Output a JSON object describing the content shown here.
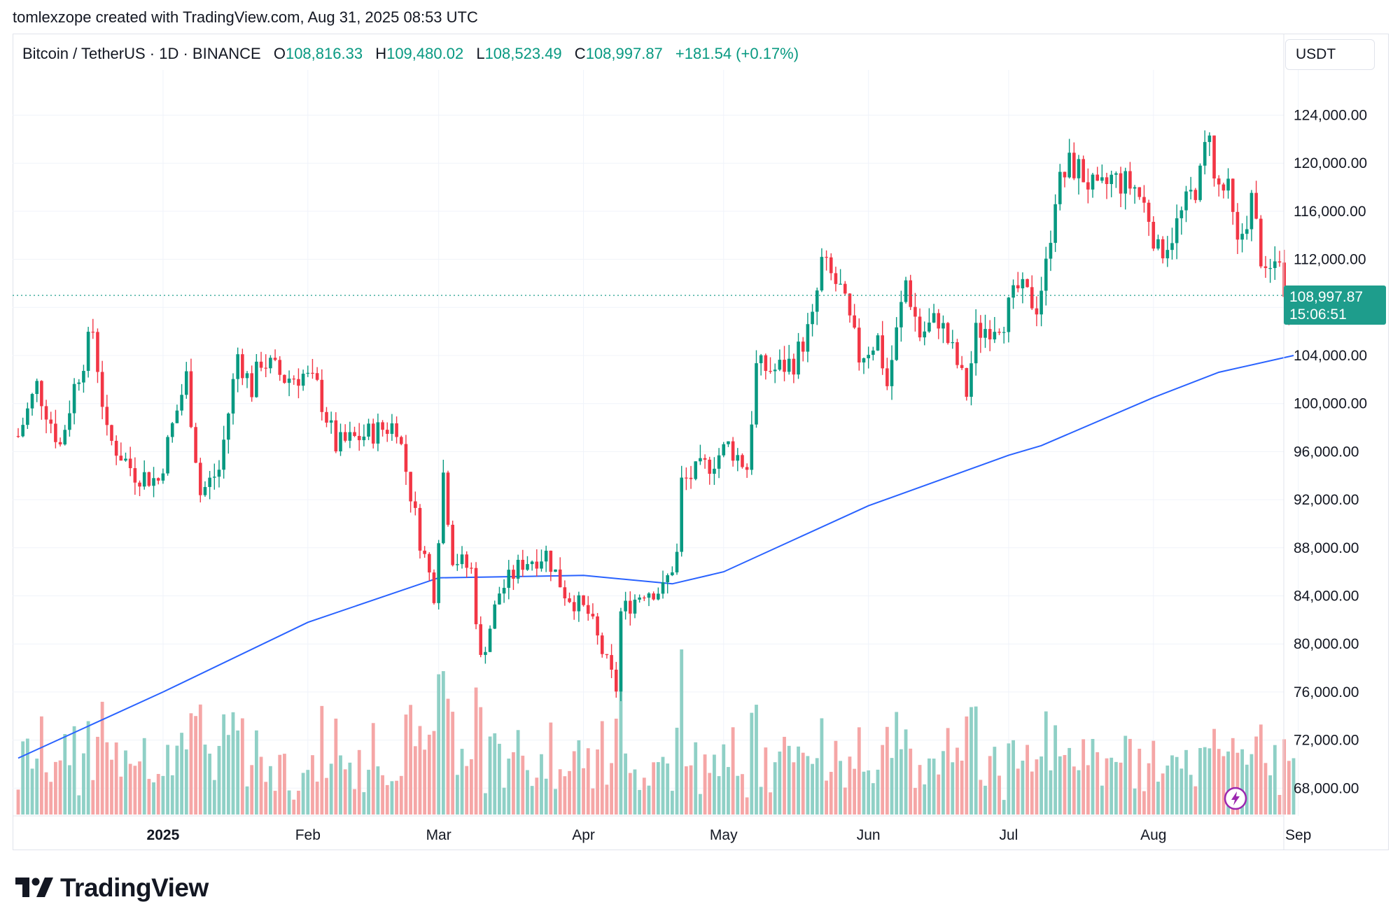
{
  "header": {
    "text": "tomlexzope created with TradingView.com, Aug 31, 2025 08:53 UTC"
  },
  "legend": {
    "symbol": "Bitcoin / TetherUS · 1D · BINANCE",
    "open_label": "O",
    "open": "108,816.33",
    "high_label": "H",
    "high": "109,480.02",
    "low_label": "L",
    "low": "108,523.49",
    "close_label": "C",
    "close": "108,997.87",
    "change": "+181.54 (+0.17%)"
  },
  "currency": "USDT",
  "last_price": {
    "price": "108,997.87",
    "countdown": "15:06:51"
  },
  "branding": {
    "logo_text": "TradingView",
    "logo_icon": "tradingview-logo-icon",
    "alert_icon": "lightning-icon"
  },
  "colors": {
    "up": "#089981",
    "down": "#f23645",
    "ma": "#2962ff",
    "volume_up": "#8fd0c6",
    "volume_down": "#f5a6a6"
  },
  "chart_data": {
    "type": "candlestick",
    "timeframe": "1D",
    "ylim": [
      66000,
      127000
    ],
    "y_ticks": [
      "68,000.00",
      "72,000.00",
      "76,000.00",
      "80,000.00",
      "84,000.00",
      "88,000.00",
      "92,000.00",
      "96,000.00",
      "100,000.00",
      "104,000.00",
      "108,000.00",
      "112,000.00",
      "116,000.00",
      "120,000.00",
      "124,000.00"
    ],
    "x_ticks": [
      {
        "label": "2025",
        "date": "2025-01-01",
        "bold": true
      },
      {
        "label": "Feb",
        "date": "2025-02-01"
      },
      {
        "label": "Mar",
        "date": "2025-03-01"
      },
      {
        "label": "Apr",
        "date": "2025-04-01"
      },
      {
        "label": "May",
        "date": "2025-05-01"
      },
      {
        "label": "Jun",
        "date": "2025-06-01"
      },
      {
        "label": "Jul",
        "date": "2025-07-01"
      },
      {
        "label": "Aug",
        "date": "2025-08-01"
      },
      {
        "label": "Sep",
        "date": "2025-09-01"
      }
    ],
    "price_series": [
      {
        "date": "2024-12-01",
        "close": 97300
      },
      {
        "date": "2024-12-05",
        "close": 101500
      },
      {
        "date": "2024-12-10",
        "close": 96500
      },
      {
        "date": "2024-12-13",
        "close": 101400
      },
      {
        "date": "2024-12-17",
        "close": 106100
      },
      {
        "date": "2024-12-20",
        "close": 97300
      },
      {
        "date": "2024-12-26",
        "close": 94200
      },
      {
        "date": "2024-12-31",
        "close": 93600
      },
      {
        "date": "2025-01-03",
        "close": 98100
      },
      {
        "date": "2025-01-06",
        "close": 102200
      },
      {
        "date": "2025-01-09",
        "close": 92500
      },
      {
        "date": "2025-01-13",
        "close": 94500
      },
      {
        "date": "2025-01-17",
        "close": 104100
      },
      {
        "date": "2025-01-20",
        "close": 101200
      },
      {
        "date": "2025-01-22",
        "close": 103700
      },
      {
        "date": "2025-01-27",
        "close": 102100
      },
      {
        "date": "2025-01-31",
        "close": 102400
      },
      {
        "date": "2025-02-03",
        "close": 101300
      },
      {
        "date": "2025-02-07",
        "close": 96500
      },
      {
        "date": "2025-02-14",
        "close": 97500
      },
      {
        "date": "2025-02-20",
        "close": 98300
      },
      {
        "date": "2025-02-25",
        "close": 88700
      },
      {
        "date": "2025-02-28",
        "close": 84300
      },
      {
        "date": "2025-03-02",
        "close": 94200
      },
      {
        "date": "2025-03-04",
        "close": 87300
      },
      {
        "date": "2025-03-08",
        "close": 86100
      },
      {
        "date": "2025-03-10",
        "close": 78600
      },
      {
        "date": "2025-03-14",
        "close": 84300
      },
      {
        "date": "2025-03-19",
        "close": 86800
      },
      {
        "date": "2025-03-24",
        "close": 87500
      },
      {
        "date": "2025-03-28",
        "close": 84300
      },
      {
        "date": "2025-04-02",
        "close": 82500
      },
      {
        "date": "2025-04-06",
        "close": 78300
      },
      {
        "date": "2025-04-08",
        "close": 76300
      },
      {
        "date": "2025-04-09",
        "close": 82600
      },
      {
        "date": "2025-04-14",
        "close": 84500
      },
      {
        "date": "2025-04-18",
        "close": 84500
      },
      {
        "date": "2025-04-21",
        "close": 87400
      },
      {
        "date": "2025-04-22",
        "close": 93400
      },
      {
        "date": "2025-04-28",
        "close": 95000
      },
      {
        "date": "2025-05-02",
        "close": 96500
      },
      {
        "date": "2025-05-06",
        "close": 94700
      },
      {
        "date": "2025-05-08",
        "close": 103000
      },
      {
        "date": "2025-05-12",
        "close": 102800
      },
      {
        "date": "2025-05-16",
        "close": 103500
      },
      {
        "date": "2025-05-20",
        "close": 106800
      },
      {
        "date": "2025-05-22",
        "close": 111700
      },
      {
        "date": "2025-05-26",
        "close": 109400
      },
      {
        "date": "2025-05-30",
        "close": 103900
      },
      {
        "date": "2025-06-03",
        "close": 105400
      },
      {
        "date": "2025-06-05",
        "close": 101500
      },
      {
        "date": "2025-06-09",
        "close": 110200
      },
      {
        "date": "2025-06-12",
        "close": 105700
      },
      {
        "date": "2025-06-16",
        "close": 107100
      },
      {
        "date": "2025-06-20",
        "close": 103300
      },
      {
        "date": "2025-06-22",
        "close": 100900
      },
      {
        "date": "2025-06-24",
        "close": 105900
      },
      {
        "date": "2025-06-30",
        "close": 107100
      },
      {
        "date": "2025-07-03",
        "close": 109500
      },
      {
        "date": "2025-07-07",
        "close": 108200
      },
      {
        "date": "2025-07-09",
        "close": 111300
      },
      {
        "date": "2025-07-11",
        "close": 117500
      },
      {
        "date": "2025-07-14",
        "close": 119800
      },
      {
        "date": "2025-07-16",
        "close": 119500
      },
      {
        "date": "2025-07-20",
        "close": 117300
      },
      {
        "date": "2025-07-23",
        "close": 118700
      },
      {
        "date": "2025-07-28",
        "close": 118000
      },
      {
        "date": "2025-07-31",
        "close": 115700
      },
      {
        "date": "2025-08-02",
        "close": 112500
      },
      {
        "date": "2025-08-05",
        "close": 114100
      },
      {
        "date": "2025-08-08",
        "close": 116500
      },
      {
        "date": "2025-08-11",
        "close": 118800
      },
      {
        "date": "2025-08-13",
        "close": 123300
      },
      {
        "date": "2025-08-14",
        "close": 118300
      },
      {
        "date": "2025-08-17",
        "close": 117500
      },
      {
        "date": "2025-08-19",
        "close": 112900
      },
      {
        "date": "2025-08-22",
        "close": 116900
      },
      {
        "date": "2025-08-25",
        "close": 110100
      },
      {
        "date": "2025-08-28",
        "close": 112500
      },
      {
        "date": "2025-08-29",
        "close": 108400
      },
      {
        "date": "2025-08-31",
        "close": 108997.87
      }
    ],
    "moving_average": [
      {
        "date": "2024-12-01",
        "value": 70500
      },
      {
        "date": "2025-01-01",
        "value": 76000
      },
      {
        "date": "2025-02-01",
        "value": 81800
      },
      {
        "date": "2025-03-01",
        "value": 85500
      },
      {
        "date": "2025-04-01",
        "value": 85700
      },
      {
        "date": "2025-04-20",
        "value": 85000
      },
      {
        "date": "2025-05-01",
        "value": 86000
      },
      {
        "date": "2025-06-01",
        "value": 91500
      },
      {
        "date": "2025-07-01",
        "value": 95700
      },
      {
        "date": "2025-07-08",
        "value": 96500
      },
      {
        "date": "2025-08-01",
        "value": 100500
      },
      {
        "date": "2025-08-15",
        "value": 102600
      },
      {
        "date": "2025-08-31",
        "value": 104000
      }
    ],
    "last_price": 108997.87
  }
}
